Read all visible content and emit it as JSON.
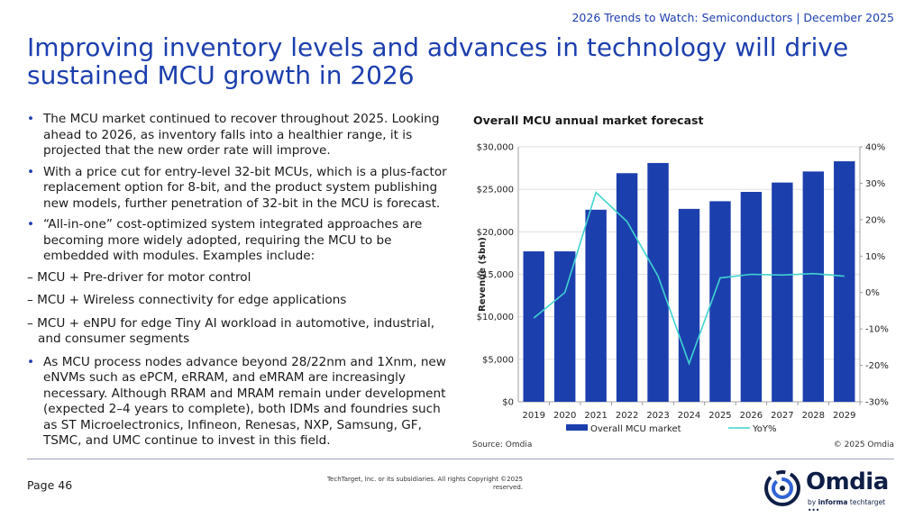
{
  "header": {
    "meta": "2026 Trends to Watch: Semiconductors | December 2025"
  },
  "title": "Improving inventory levels and advances in technology will drive sustained MCU growth in 2026",
  "bullets": [
    "The MCU market continued to recover throughout 2025. Looking ahead to 2026, as inventory falls into a healthier range, it is projected that the new order rate will improve.",
    "With a price cut for entry-level 32-bit MCUs, which is a plus-factor replacement option for 8-bit, and the product system publishing new models, further penetration of 32-bit in the MCU is forecast.",
    "“All-in-one” cost-optimized system integrated approaches are becoming more widely adopted, requiring the MCU to be embedded with modules. Examples include:",
    "As MCU process nodes advance beyond 28/22nm and 1Xnm, new eNVMs such as ePCM, eRRAM, and eMRAM are increasingly necessary. Although RRAM and MRAM remain under development (expected 2–4 years to complete), both IDMs and foundries such as ST Microelectronics, Infineon, Renesas, NXP, Samsung, GF, TSMC, and UMC continue to invest in this field."
  ],
  "sub_bullets": [
    "– MCU + Pre-driver for motor control",
    "– MCU + Wireless connectivity for edge applications",
    "– MCU + eNPU for edge Tiny AI workload in automotive, industrial, and consumer segments"
  ],
  "bullet_symbol": "•",
  "chart_data": {
    "type": "bar",
    "title": "Overall MCU annual market forecast",
    "categories": [
      "2019",
      "2020",
      "2021",
      "2022",
      "2023",
      "2024",
      "2025",
      "2026",
      "2027",
      "2028",
      "2029"
    ],
    "series": [
      {
        "name": "Overall MCU market",
        "type": "bar",
        "axis": "left",
        "color": "#1c3fae",
        "values": [
          17700,
          17700,
          22600,
          26900,
          28100,
          22700,
          23600,
          24700,
          25800,
          27100,
          28300
        ]
      },
      {
        "name": "YoY%",
        "type": "line",
        "axis": "right",
        "color": "#3fd3cf",
        "values": [
          -7,
          0,
          27.5,
          19.5,
          4.5,
          -19.5,
          4,
          5,
          4.8,
          5.2,
          4.5
        ]
      }
    ],
    "ylabel": "Revenue ($bn)",
    "ylim": [
      0,
      30000
    ],
    "yticks": [
      "$0",
      "$5,000",
      "$10,000",
      "$15,000",
      "$20,000",
      "$25,000",
      "$30,000"
    ],
    "y2lim": [
      -30,
      40
    ],
    "y2ticks": [
      "-30%",
      "-20%",
      "-10%",
      "0%",
      "10%",
      "20%",
      "30%",
      "40%"
    ],
    "legend": "bottom",
    "grid": true
  },
  "source": "Source: Omdia",
  "chart_copyright": "© 2025 Omdia",
  "footer": {
    "page": "Page 46",
    "legal": "TechTarget, Inc. or its subsidiaries. All rights Copyright ©2025 reserved."
  },
  "logo": {
    "word": "Omdia",
    "sub_prefix": "by ",
    "sub_bold": "informa",
    "sub_rest": " techtarget"
  }
}
